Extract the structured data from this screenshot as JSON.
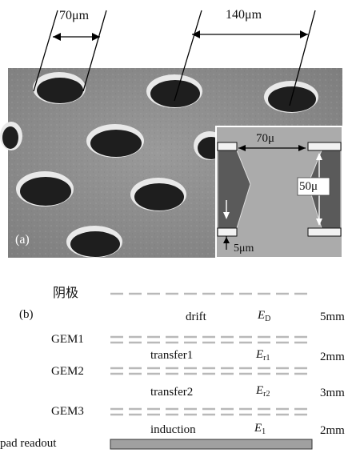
{
  "figure_a": {
    "panel_label": "(a)",
    "dims": {
      "hole_diameter": "70μm",
      "hole_pitch": "140μm",
      "inset_hole_width": "70μ",
      "inset_thickness": "50μ",
      "inset_copper": "5μm"
    }
  },
  "figure_b": {
    "panel_label": "(b)",
    "cathode_label": "阴极",
    "gem_labels": [
      "GEM1",
      "GEM2",
      "GEM3"
    ],
    "readout_label": "pad readout",
    "regions": [
      {
        "name": "drift",
        "field_symbol": "E",
        "field_sub": "D",
        "gap": "5mm"
      },
      {
        "name": "transfer1",
        "field_symbol": "E",
        "field_sub": "r1",
        "gap": "2mm"
      },
      {
        "name": "transfer2",
        "field_symbol": "E",
        "field_sub": "r2",
        "gap": "3mm"
      },
      {
        "name": "induction",
        "field_symbol": "E",
        "field_sub": "1",
        "gap": "2mm"
      }
    ]
  },
  "colors": {
    "sem_surface": "#8f8f8f",
    "hole": "#1e1e1e",
    "hole_rim": "#e6e6e6",
    "inset_bg": "#a9a9a9",
    "kapton": "#5a5a5a",
    "electrode_line": "#b8b8b8",
    "readout_pad": "#a0a0a0"
  }
}
